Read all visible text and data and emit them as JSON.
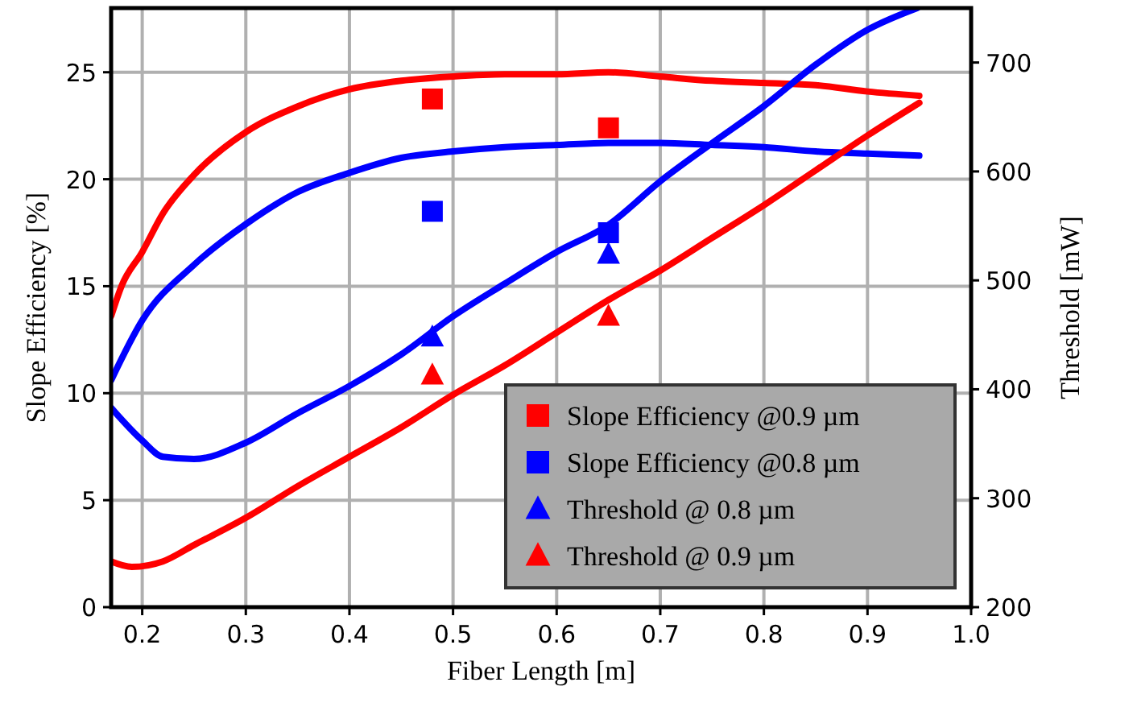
{
  "chart_data": {
    "type": "line",
    "xlabel": "Fiber Length [m]",
    "ylabel": "Slope Efficiency [%]",
    "y2label": "Threshold [mW]",
    "xlim": [
      0.17,
      1.0
    ],
    "xticks": [
      0.2,
      0.3,
      0.4,
      0.5,
      0.6,
      0.7,
      0.8,
      0.9,
      {
        "value": 1.0,
        "label": "1.0"
      }
    ],
    "ylim": [
      0,
      28
    ],
    "yticks": [
      0,
      5,
      10,
      15,
      20,
      25
    ],
    "y2lim": [
      200,
      750
    ],
    "y2ticks": [
      200,
      300,
      400,
      500,
      600,
      700
    ],
    "grid": true,
    "legend": "bottom right",
    "line_style": "solid",
    "series": [
      {
        "color": "#ff0000",
        "marker": "none",
        "x": [
          0.17,
          0.18,
          0.2,
          0.22,
          0.25,
          0.3,
          0.35,
          0.4,
          0.45,
          0.5,
          0.55,
          0.6,
          0.65,
          0.7,
          0.75,
          0.8,
          0.85,
          0.9,
          0.95
        ],
        "values": [
          13.6,
          15,
          16.6,
          18.4,
          20.2,
          22.2,
          23.4,
          24.2,
          24.6,
          24.8,
          24.9,
          24.9,
          25.0,
          24.8,
          24.6,
          24.5,
          24.4,
          24.1,
          23.9
        ]
      },
      {
        "color": "#0000ff",
        "marker": "none",
        "x": [
          0.17,
          0.2,
          0.25,
          0.3,
          0.35,
          0.4,
          0.45,
          0.5,
          0.55,
          0.6,
          0.65,
          0.7,
          0.75,
          0.8,
          0.85,
          0.9,
          0.95
        ],
        "values": [
          10.6,
          13.4,
          16.0,
          17.9,
          19.4,
          20.3,
          21.0,
          21.3,
          21.5,
          21.6,
          21.7,
          21.7,
          21.6,
          21.5,
          21.3,
          21.2,
          21.1
        ]
      },
      {
        "axis": "y2",
        "color": "#0000ff",
        "marker": "none",
        "x": [
          0.17,
          0.2,
          0.22,
          0.25,
          0.3,
          0.35,
          0.4,
          0.45,
          0.5,
          0.55,
          0.6,
          0.65,
          0.7,
          0.75,
          0.8,
          0.85,
          0.9,
          0.948
        ],
        "values": [
          383,
          353,
          338,
          336,
          351,
          378,
          403,
          432,
          467,
          497,
          526,
          551,
          591,
          626,
          660,
          698,
          730,
          750
        ]
      },
      {
        "axis": "y2",
        "color": "#ff0000",
        "marker": "none",
        "x": [
          0.17,
          0.19,
          0.22,
          0.25,
          0.3,
          0.35,
          0.4,
          0.45,
          0.5,
          0.55,
          0.6,
          0.65,
          0.7,
          0.75,
          0.8,
          0.85,
          0.9,
          0.95
        ],
        "values": [
          242,
          237,
          242,
          257,
          282,
          311,
          338,
          365,
          395,
          422,
          452,
          482,
          509,
          539,
          569,
          601,
          633,
          663
        ]
      },
      {
        "type": "scatter",
        "name": "Slope Efficiency @0.9 µm",
        "color": "#ff0000",
        "marker": "square",
        "x": [
          0.48,
          0.65
        ],
        "values": [
          23.75,
          22.4
        ]
      },
      {
        "type": "scatter",
        "name": "Slope Efficiency @0.8 µm",
        "color": "#0000ff",
        "marker": "square",
        "x": [
          0.48,
          0.65
        ],
        "values": [
          18.5,
          17.5
        ]
      },
      {
        "type": "scatter",
        "axis": "y2",
        "name": "Threshold @ 0.8 µm",
        "color": "#0000ff",
        "marker": "triangle",
        "x": [
          0.48,
          0.65
        ],
        "values": [
          448,
          524
        ]
      },
      {
        "type": "scatter",
        "axis": "y2",
        "name": "Threshold @ 0.9 µm",
        "color": "#ff0000",
        "marker": "triangle",
        "x": [
          0.48,
          0.65
        ],
        "values": [
          413,
          467
        ]
      }
    ]
  }
}
